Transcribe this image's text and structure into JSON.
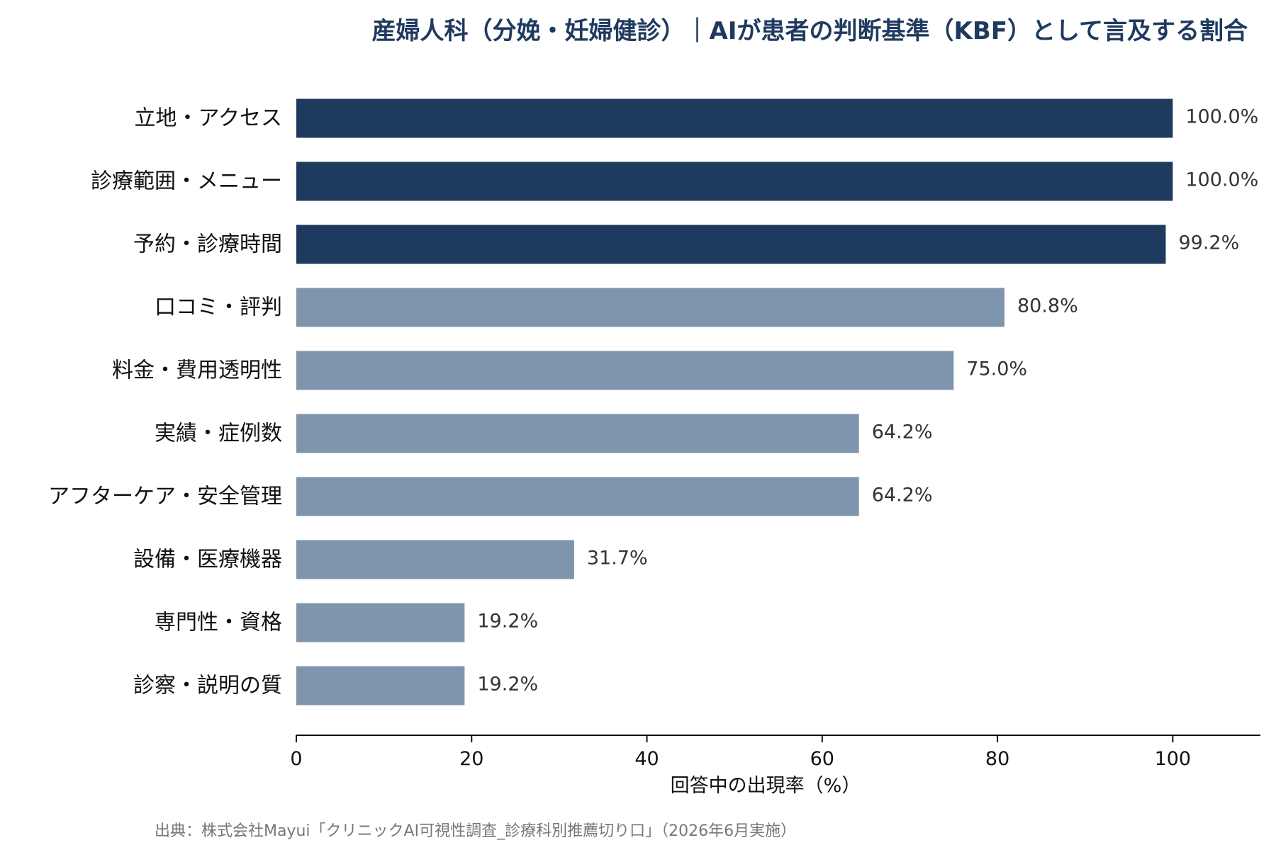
{
  "chart_data": {
    "type": "bar",
    "orientation": "horizontal",
    "title": "産婦人科（分娩・妊婦健診）｜AIが患者の判断基準（KBF）として言及する割合",
    "categories": [
      "立地・アクセス",
      "診療範囲・メニュー",
      "予約・診療時間",
      "口コミ・評判",
      "料金・費用透明性",
      "実績・症例数",
      "アフターケア・安全管理",
      "設備・医療機器",
      "専門性・資格",
      "診察・説明の質"
    ],
    "values": [
      100.0,
      100.0,
      99.2,
      80.8,
      75.0,
      64.2,
      64.2,
      31.7,
      19.2,
      19.2
    ],
    "value_labels": [
      "100.0%",
      "100.0%",
      "99.2%",
      "80.8%",
      "75.0%",
      "64.2%",
      "64.2%",
      "31.7%",
      "19.2%",
      "19.2%"
    ],
    "highlight_top_n": 3,
    "xlabel": "回答中の出現率（%）",
    "ylabel": "",
    "xlim": [
      0,
      110
    ],
    "xticks": [
      0,
      20,
      40,
      60,
      80,
      100
    ],
    "grid": false,
    "colors": {
      "highlight": "#1f3a5f",
      "normal": "#7f95ae",
      "title": "#1f3a5f"
    }
  },
  "source_note": "出典：株式会社Mayui「クリニックAI可視性調査_診療科別推薦切り口」（2026年6月実施）"
}
